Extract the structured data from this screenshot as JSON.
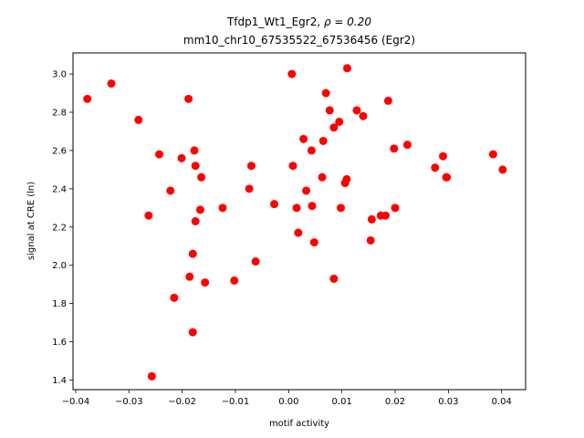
{
  "chart_data": {
    "type": "scatter",
    "title_prefix": "Tfdp1_Wt1_Egr2, ",
    "title_rho": "ρ = 0.20",
    "subtitle": "mm10_chr10_67535522_67536456 (Egr2)",
    "xlabel": "motif activity",
    "ylabel": "signal at CRE (ln)",
    "xlim": [
      -0.0405,
      0.0445
    ],
    "ylim": [
      1.35,
      3.11
    ],
    "xticks": [
      -0.04,
      -0.03,
      -0.02,
      -0.01,
      0.0,
      0.01,
      0.02,
      0.03,
      0.04
    ],
    "xtick_labels": [
      "−0.04",
      "−0.03",
      "−0.02",
      "−0.01",
      "0.00",
      "0.01",
      "0.02",
      "0.03",
      "0.04"
    ],
    "yticks": [
      1.4,
      1.6,
      1.8,
      2.0,
      2.2,
      2.4,
      2.6,
      2.8,
      3.0
    ],
    "ytick_labels": [
      "1.4",
      "1.6",
      "1.8",
      "2.0",
      "2.2",
      "2.4",
      "2.6",
      "2.8",
      "3.0"
    ],
    "grid": false,
    "marker_color": "#ff0000",
    "points": [
      {
        "x": -0.0378,
        "y": 2.87
      },
      {
        "x": -0.0333,
        "y": 2.95
      },
      {
        "x": -0.0282,
        "y": 2.76
      },
      {
        "x": -0.0263,
        "y": 2.26
      },
      {
        "x": -0.0257,
        "y": 1.42
      },
      {
        "x": -0.0243,
        "y": 2.58
      },
      {
        "x": -0.0222,
        "y": 2.39
      },
      {
        "x": -0.0215,
        "y": 1.83
      },
      {
        "x": -0.0201,
        "y": 2.56
      },
      {
        "x": -0.0188,
        "y": 2.87
      },
      {
        "x": -0.0186,
        "y": 1.94
      },
      {
        "x": -0.018,
        "y": 2.06
      },
      {
        "x": -0.018,
        "y": 1.65
      },
      {
        "x": -0.0177,
        "y": 2.6
      },
      {
        "x": -0.0175,
        "y": 2.52
      },
      {
        "x": -0.0175,
        "y": 2.23
      },
      {
        "x": -0.0166,
        "y": 2.29
      },
      {
        "x": -0.0164,
        "y": 2.46
      },
      {
        "x": -0.0157,
        "y": 1.91
      },
      {
        "x": -0.0124,
        "y": 2.3
      },
      {
        "x": -0.0102,
        "y": 1.92
      },
      {
        "x": -0.0074,
        "y": 2.4
      },
      {
        "x": -0.007,
        "y": 2.52
      },
      {
        "x": -0.0062,
        "y": 2.02
      },
      {
        "x": -0.0027,
        "y": 2.32
      },
      {
        "x": 0.0006,
        "y": 3.0
      },
      {
        "x": 0.0008,
        "y": 2.52
      },
      {
        "x": 0.0015,
        "y": 2.3
      },
      {
        "x": 0.0018,
        "y": 2.17
      },
      {
        "x": 0.0028,
        "y": 2.66
      },
      {
        "x": 0.0033,
        "y": 2.39
      },
      {
        "x": 0.0043,
        "y": 2.6
      },
      {
        "x": 0.0044,
        "y": 2.31
      },
      {
        "x": 0.0048,
        "y": 2.12
      },
      {
        "x": 0.0063,
        "y": 2.46
      },
      {
        "x": 0.0065,
        "y": 2.65
      },
      {
        "x": 0.007,
        "y": 2.9
      },
      {
        "x": 0.0077,
        "y": 2.81
      },
      {
        "x": 0.0085,
        "y": 1.93
      },
      {
        "x": 0.0085,
        "y": 2.72
      },
      {
        "x": 0.0095,
        "y": 2.75
      },
      {
        "x": 0.0098,
        "y": 2.3
      },
      {
        "x": 0.0106,
        "y": 2.43
      },
      {
        "x": 0.0109,
        "y": 2.45
      },
      {
        "x": 0.011,
        "y": 3.03
      },
      {
        "x": 0.0128,
        "y": 2.81
      },
      {
        "x": 0.014,
        "y": 2.78
      },
      {
        "x": 0.0154,
        "y": 2.13
      },
      {
        "x": 0.0156,
        "y": 2.24
      },
      {
        "x": 0.0173,
        "y": 2.26
      },
      {
        "x": 0.0182,
        "y": 2.26
      },
      {
        "x": 0.0187,
        "y": 2.86
      },
      {
        "x": 0.0198,
        "y": 2.61
      },
      {
        "x": 0.02,
        "y": 2.3
      },
      {
        "x": 0.0223,
        "y": 2.63
      },
      {
        "x": 0.0275,
        "y": 2.51
      },
      {
        "x": 0.029,
        "y": 2.57
      },
      {
        "x": 0.0296,
        "y": 2.46
      },
      {
        "x": 0.0297,
        "y": 2.46
      },
      {
        "x": 0.0384,
        "y": 2.58
      },
      {
        "x": 0.0402,
        "y": 2.5
      }
    ]
  }
}
